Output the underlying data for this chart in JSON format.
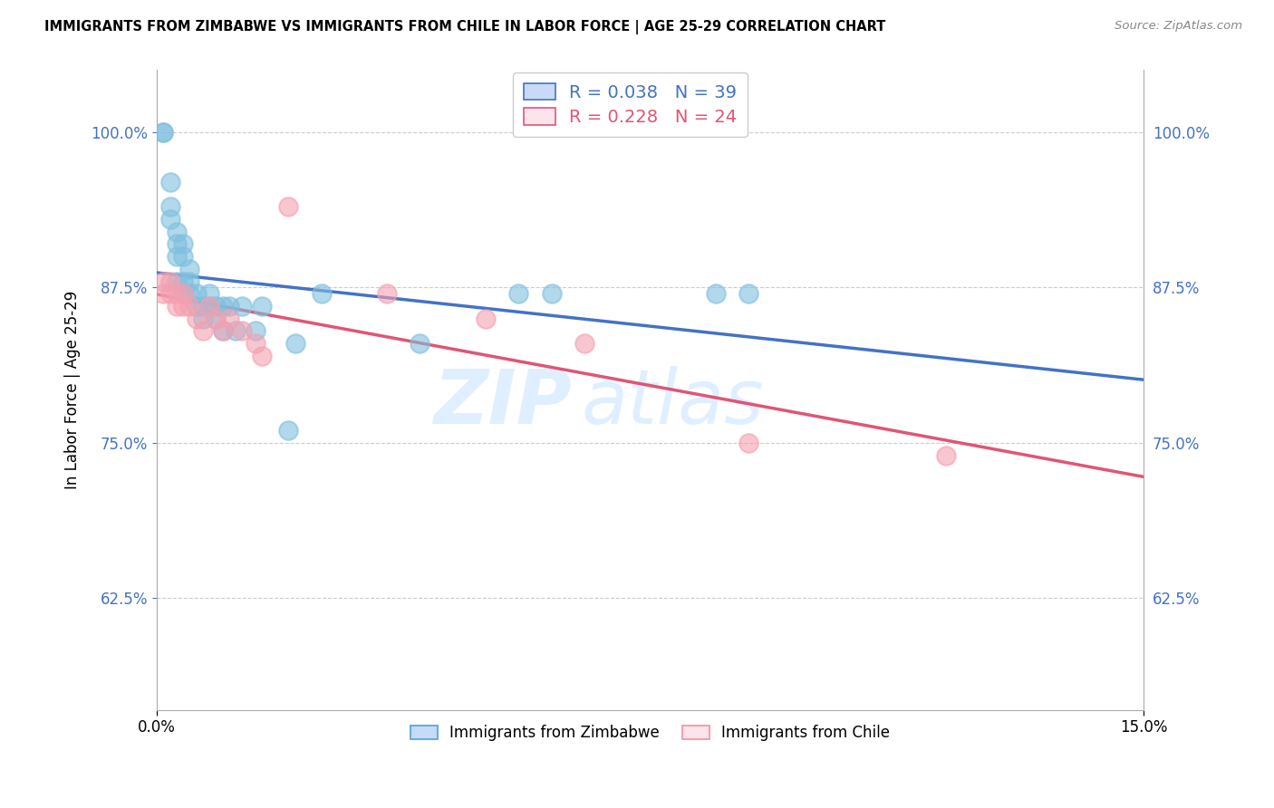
{
  "title": "IMMIGRANTS FROM ZIMBABWE VS IMMIGRANTS FROM CHILE IN LABOR FORCE | AGE 25-29 CORRELATION CHART",
  "source": "Source: ZipAtlas.com",
  "ylabel": "In Labor Force | Age 25-29",
  "xlim": [
    0.0,
    0.15
  ],
  "ylim": [
    0.535,
    1.05
  ],
  "yticks": [
    0.625,
    0.75,
    0.875,
    1.0
  ],
  "ytick_labels": [
    "62.5%",
    "75.0%",
    "87.5%",
    "100.0%"
  ],
  "xticks": [
    0.0,
    0.15
  ],
  "xtick_labels": [
    "0.0%",
    "15.0%"
  ],
  "color_zimbabwe": "#7fbfdf",
  "color_chile": "#f4a0b0",
  "line_color_zimbabwe": "#4472c4",
  "line_color_chile": "#e05575",
  "watermark_zip": "ZIP",
  "watermark_atlas": "atlas",
  "zimbabwe_x": [
    0.001,
    0.001,
    0.002,
    0.002,
    0.002,
    0.003,
    0.003,
    0.003,
    0.003,
    0.004,
    0.004,
    0.004,
    0.004,
    0.005,
    0.005,
    0.005,
    0.006,
    0.006,
    0.007,
    0.007,
    0.008,
    0.008,
    0.009,
    0.009,
    0.01,
    0.01,
    0.011,
    0.012,
    0.013,
    0.015,
    0.016,
    0.02,
    0.021,
    0.025,
    0.04,
    0.055,
    0.06,
    0.085,
    0.09
  ],
  "zimbabwe_y": [
    1.0,
    1.0,
    0.96,
    0.94,
    0.93,
    0.92,
    0.91,
    0.9,
    0.88,
    0.91,
    0.9,
    0.88,
    0.87,
    0.89,
    0.88,
    0.87,
    0.87,
    0.86,
    0.86,
    0.85,
    0.87,
    0.86,
    0.86,
    0.85,
    0.86,
    0.84,
    0.86,
    0.84,
    0.86,
    0.84,
    0.86,
    0.76,
    0.83,
    0.87,
    0.83,
    0.87,
    0.87,
    0.87,
    0.87
  ],
  "chile_x": [
    0.001,
    0.001,
    0.002,
    0.002,
    0.003,
    0.003,
    0.004,
    0.004,
    0.005,
    0.006,
    0.007,
    0.008,
    0.009,
    0.01,
    0.011,
    0.013,
    0.015,
    0.016,
    0.02,
    0.035,
    0.05,
    0.065,
    0.09,
    0.12
  ],
  "chile_y": [
    0.88,
    0.87,
    0.88,
    0.87,
    0.87,
    0.86,
    0.87,
    0.86,
    0.86,
    0.85,
    0.84,
    0.86,
    0.85,
    0.84,
    0.85,
    0.84,
    0.83,
    0.82,
    0.94,
    0.87,
    0.85,
    0.83,
    0.75,
    0.74
  ]
}
